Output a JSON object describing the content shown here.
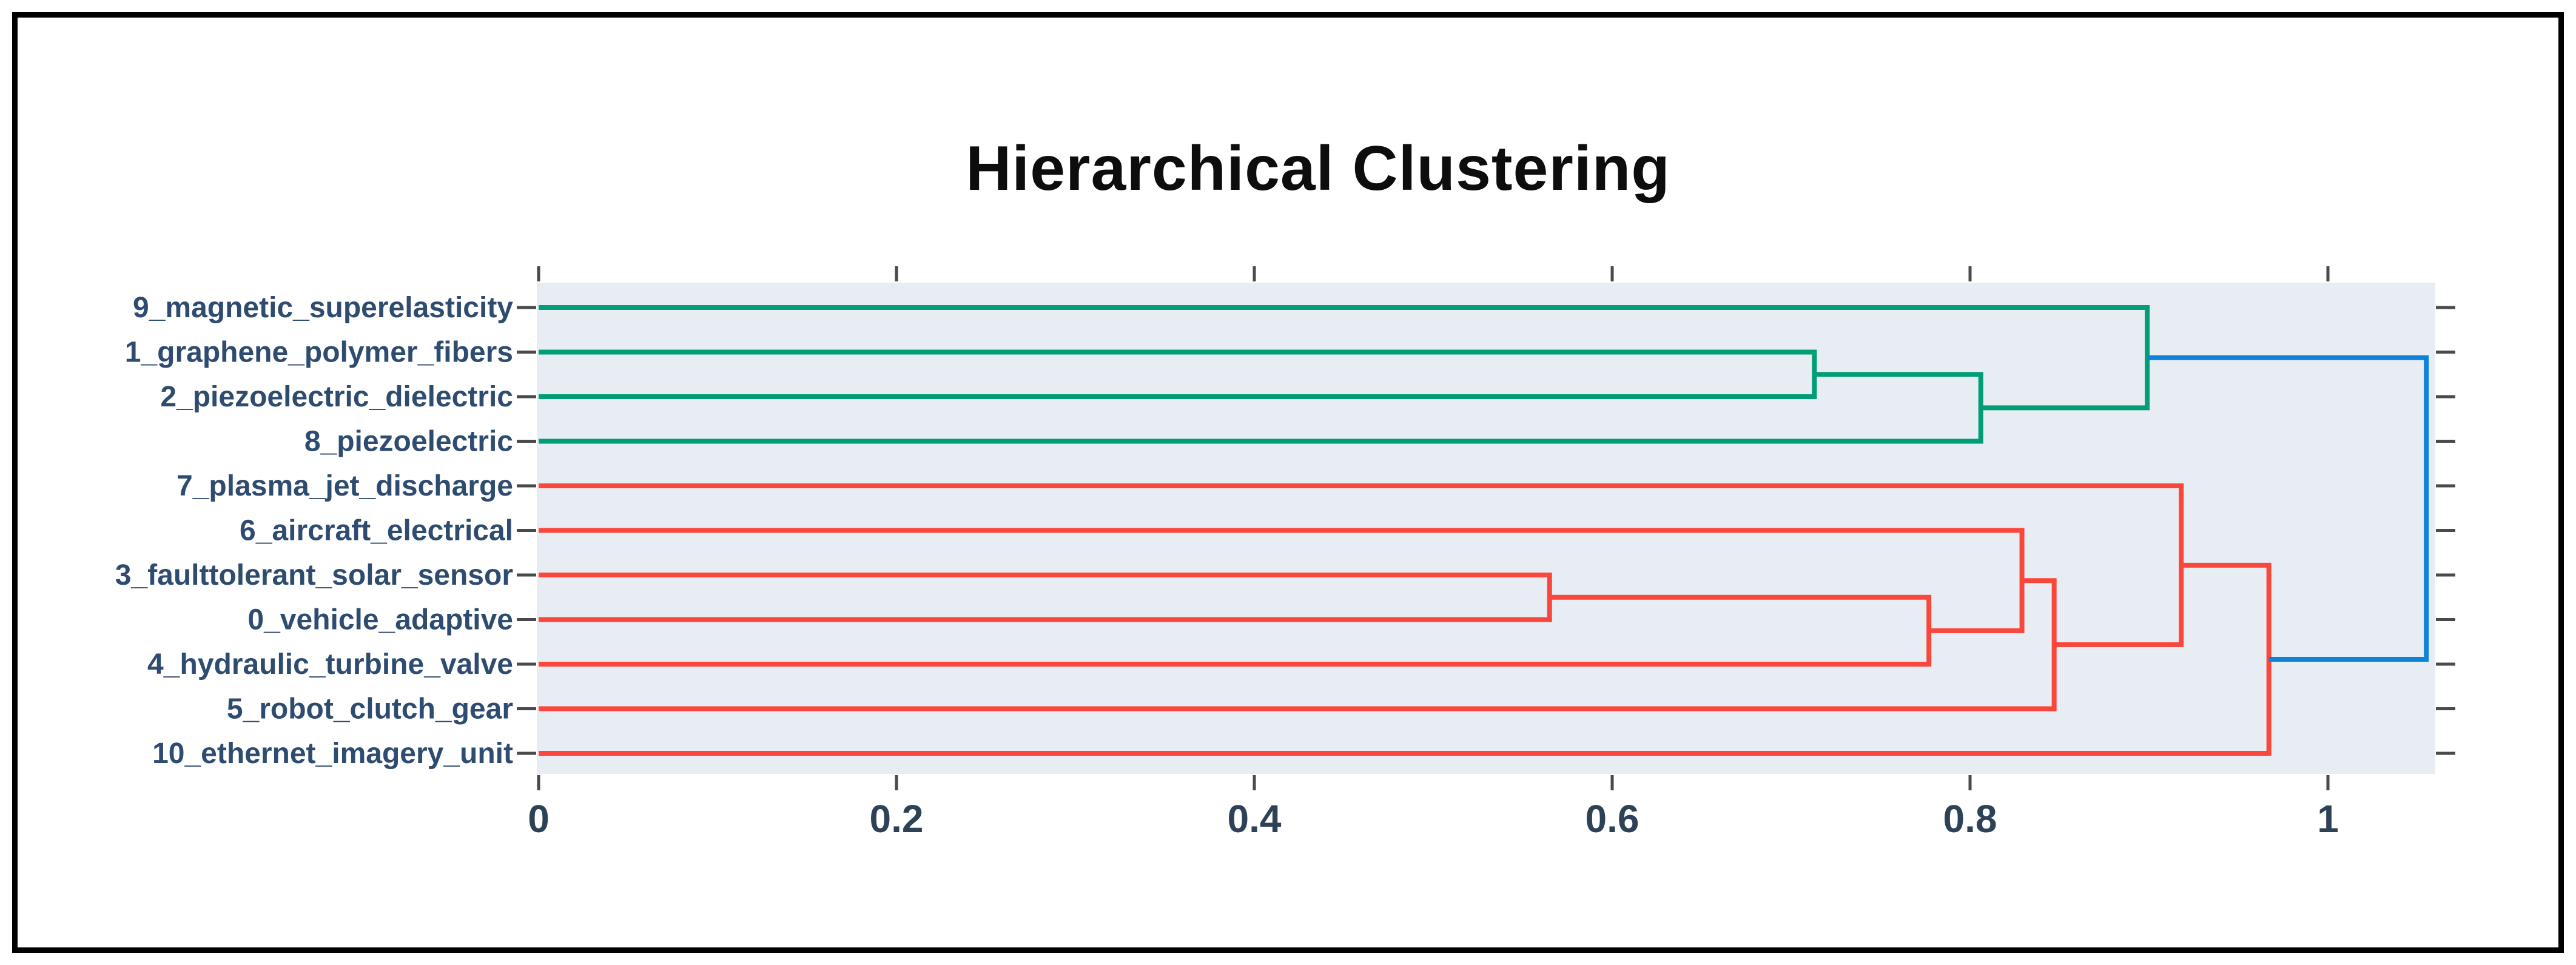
{
  "figure": {
    "title": "Hierarchical Clustering"
  },
  "chart_data": {
    "type": "dendrogram",
    "title": "Hierarchical Clustering",
    "orientation": "horizontal: leaves on left, root on right",
    "x_axis": {
      "tick_values": [
        0,
        0.2,
        0.4,
        0.6,
        0.8,
        1
      ],
      "tick_labels": [
        "0",
        "0.2",
        "0.4",
        "0.6",
        "0.8",
        "1"
      ],
      "range": [
        0,
        1.06
      ],
      "mirrored_top_ticks": true
    },
    "y_axis": {
      "tick_style": "one short dash per leaf, mirrored on right side",
      "grid": false
    },
    "leaves": [
      "9_magnetic_superelasticity",
      "1_graphene_polymer_fibers",
      "2_piezoelectric_dielectric",
      "8_piezoelectric",
      "7_plasma_jet_discharge",
      "6_aircraft_electrical",
      "3_faulttolerant_solar_sensor",
      "0_vehicle_adaptive",
      "4_hydraulic_turbine_valve",
      "5_robot_clutch_gear",
      "10_ethernet_imagery_unit"
    ],
    "merges": [
      {
        "children": [
          "leaf:6",
          "leaf:7"
        ],
        "distance": 0.565,
        "color_key": "red"
      },
      {
        "children": [
          "leaf:1",
          "leaf:2"
        ],
        "distance": 0.713,
        "color_key": "green"
      },
      {
        "children": [
          "merge:0",
          "leaf:8"
        ],
        "distance": 0.777,
        "color_key": "red"
      },
      {
        "children": [
          "merge:1",
          "leaf:3"
        ],
        "distance": 0.806,
        "color_key": "green"
      },
      {
        "children": [
          "leaf:5",
          "merge:2"
        ],
        "distance": 0.829,
        "color_key": "red"
      },
      {
        "children": [
          "merge:4",
          "leaf:9"
        ],
        "distance": 0.847,
        "color_key": "red"
      },
      {
        "children": [
          "leaf:0",
          "merge:3"
        ],
        "distance": 0.899,
        "color_key": "green"
      },
      {
        "children": [
          "leaf:4",
          "merge:5"
        ],
        "distance": 0.918,
        "color_key": "red"
      },
      {
        "children": [
          "merge:7",
          "leaf:10"
        ],
        "distance": 0.967,
        "color_key": "red"
      },
      {
        "children": [
          "merge:6",
          "merge:8"
        ],
        "distance": 1.055,
        "color_key": "blue"
      }
    ],
    "colors": {
      "green": "#009e76",
      "red": "#fb463b",
      "blue": "#0d82d9",
      "plot_background": "#e8edf3",
      "leaf_label_text": "#2e4b70",
      "tick_label_text": "#2d4257",
      "tick_mark": "#4a4a4a",
      "title_text": "#0d0d0d"
    }
  }
}
